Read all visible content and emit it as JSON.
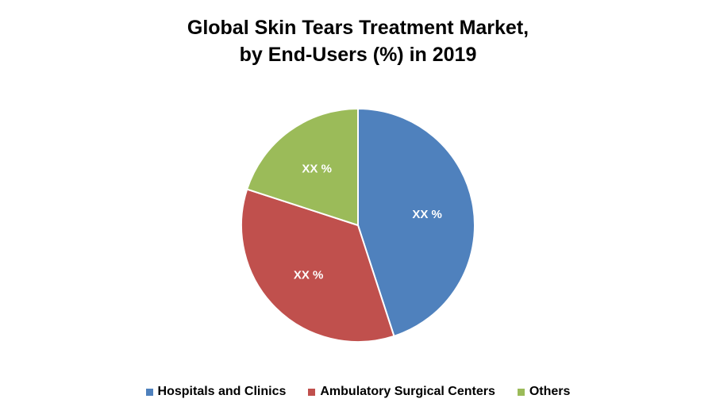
{
  "chart_data": {
    "type": "pie",
    "title_line1": "Global Skin Tears Treatment Market,",
    "title_line2": "by End-Users (%) in 2019",
    "slices": [
      {
        "name": "Hospitals and Clinics",
        "value": 45,
        "label": "XX %",
        "color": "#4F81BD"
      },
      {
        "name": "Ambulatory Surgical Centers",
        "value": 35,
        "label": "XX %",
        "color": "#C0504D"
      },
      {
        "name": "Others",
        "value": 20,
        "label": "XX %",
        "color": "#9BBB59"
      }
    ],
    "legend_position": "bottom"
  }
}
